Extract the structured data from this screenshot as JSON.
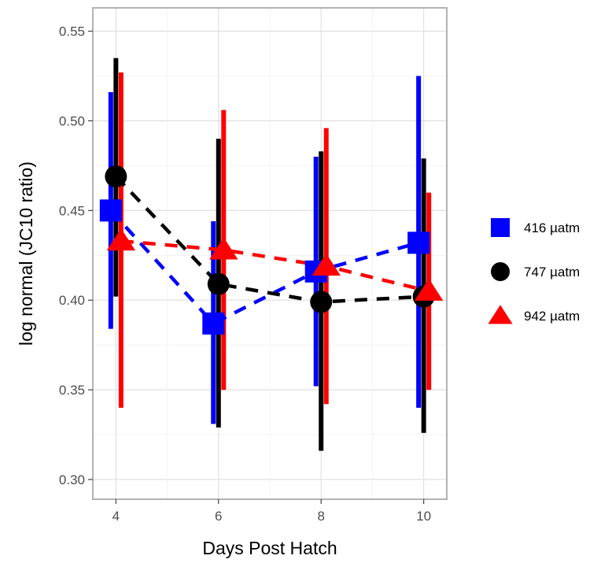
{
  "chart_data": {
    "type": "line",
    "title": "",
    "xlabel": "Days Post Hatch",
    "ylabel": "log normal (JC10 ratio)",
    "xlim": [
      3.55,
      10.45
    ],
    "ylim": [
      0.289,
      0.563
    ],
    "x_ticks": [
      4,
      6,
      8,
      10
    ],
    "x_tick_labels": [
      "4",
      "6",
      "8",
      "10"
    ],
    "y_ticks": [
      0.3,
      0.35,
      0.4,
      0.45,
      0.5,
      0.55
    ],
    "y_tick_labels": [
      "0.30",
      "0.35",
      "0.40",
      "0.45",
      "0.50",
      "0.55"
    ],
    "grid": true,
    "legend_position": "right",
    "x": [
      4,
      6,
      8,
      10
    ],
    "series": [
      {
        "name": "416 µatm",
        "color": "#0000ff",
        "marker": "square",
        "dodge": -0.1,
        "values": [
          0.45,
          0.387,
          0.416,
          0.432
        ],
        "lower": [
          0.384,
          0.331,
          0.352,
          0.34
        ],
        "upper": [
          0.516,
          0.444,
          0.48,
          0.525
        ]
      },
      {
        "name": "747 µatm",
        "color": "#000000",
        "marker": "circle",
        "dodge": 0.0,
        "values": [
          0.469,
          0.409,
          0.399,
          0.402
        ],
        "lower": [
          0.402,
          0.329,
          0.316,
          0.326
        ],
        "upper": [
          0.535,
          0.49,
          0.483,
          0.479
        ]
      },
      {
        "name": "942 µatm",
        "color": "#ff0000",
        "marker": "triangle",
        "dodge": 0.1,
        "values": [
          0.433,
          0.428,
          0.419,
          0.405
        ],
        "lower": [
          0.34,
          0.35,
          0.342,
          0.35
        ],
        "upper": [
          0.527,
          0.506,
          0.496,
          0.46
        ]
      }
    ]
  }
}
